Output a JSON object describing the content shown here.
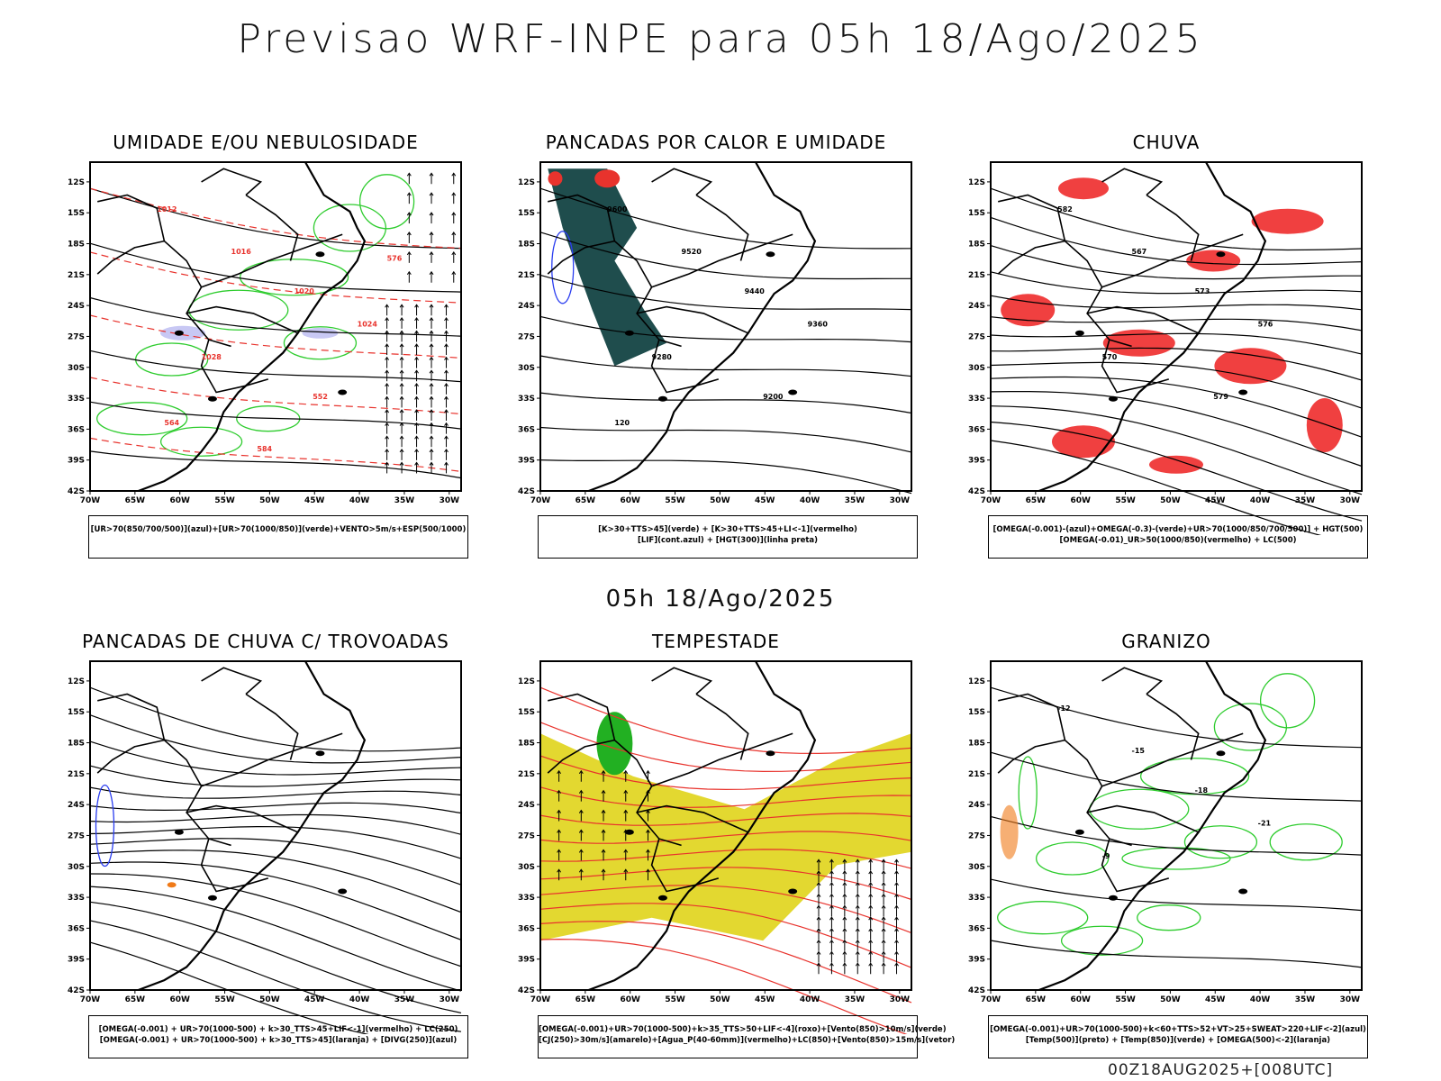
{
  "title": "Previsao WRF-INPE  para 05h 18/Ago/2025",
  "mid_title": "05h 18/Ago/2025",
  "footer": "00Z18AUG2025+[008UTC]",
  "lat_labels": [
    "12S",
    "15S",
    "18S",
    "21S",
    "24S",
    "27S",
    "30S",
    "33S",
    "36S",
    "39S",
    "42S"
  ],
  "lon_labels": [
    "70W",
    "65W",
    "60W",
    "55W",
    "50W",
    "45W",
    "40W",
    "35W",
    "30W"
  ],
  "panels": [
    {
      "title": "UMIDADE E/OU NEBULOSIDADE",
      "legend": [
        "[UR>70(850/700/500)](azul)+[UR>70(1000/850)](verde)+VENTO>5m/s+ESP(500/1000)"
      ],
      "labels": [
        "1012",
        "1016",
        "1020",
        "1024",
        "1028",
        "552",
        "564",
        "576",
        "584"
      ]
    },
    {
      "title": "PANCADAS POR CALOR E UMIDADE",
      "legend": [
        "[K>30+TTS>45](verde) + [K>30+TTS>45+LI<-1](vermelho)",
        "[LIF](cont.azul) + [HGT(300)](linha preta)"
      ],
      "labels": [
        "9600",
        "9520",
        "9440",
        "9360",
        "9280",
        "9200",
        "120"
      ]
    },
    {
      "title": "CHUVA",
      "legend": [
        "[OMEGA(-0.001)-(azul)+OMEGA(-0.3)-(verde)+UR>70(1000/850/700/500)] + HGT(500)",
        "[OMEGA(-0.01)_UR>50(1000/850)(vermelho) + LC(500)"
      ],
      "labels": [
        "582",
        "567",
        "573",
        "576",
        "570",
        "579"
      ]
    },
    {
      "title": "PANCADAS DE CHUVA C/ TROVOADAS",
      "legend": [
        "[OMEGA(-0.001) + UR>70(1000-500) + k>30_TTS>45+LIF<-1](vermelho) + LC(250)",
        "[OMEGA(-0.001) + UR>70(1000-500) + k>30_TTS>45](laranja) + [DIVG(250)](azul)"
      ],
      "labels": []
    },
    {
      "title": "TEMPESTADE",
      "legend": [
        "[OMEGA(-0.001)+UR>70(1000-500)+k>35_TTS>50+LIF<-4](roxo)+[Vento(850)>10m/s](verde)",
        "[CJ(250)>30m/s](amarelo)+[Agua_P(40-60mm)](vermelho)+LC(850)+[Vento(850)>15m/s](vetor)"
      ],
      "labels": []
    },
    {
      "title": "GRANIZO",
      "legend": [
        "[OMEGA(-0.001)+UR>70(1000-500)+k<60+TTS>52+VT>25+SWEAT>220+LIF<-2](azul)",
        "[Temp(500)](preto) + [Temp(850)](verde) + [OMEGA(500)<-2](laranja)"
      ],
      "labels": [
        "-12",
        "-15",
        "-18",
        "-21",
        "-9"
      ]
    }
  ]
}
